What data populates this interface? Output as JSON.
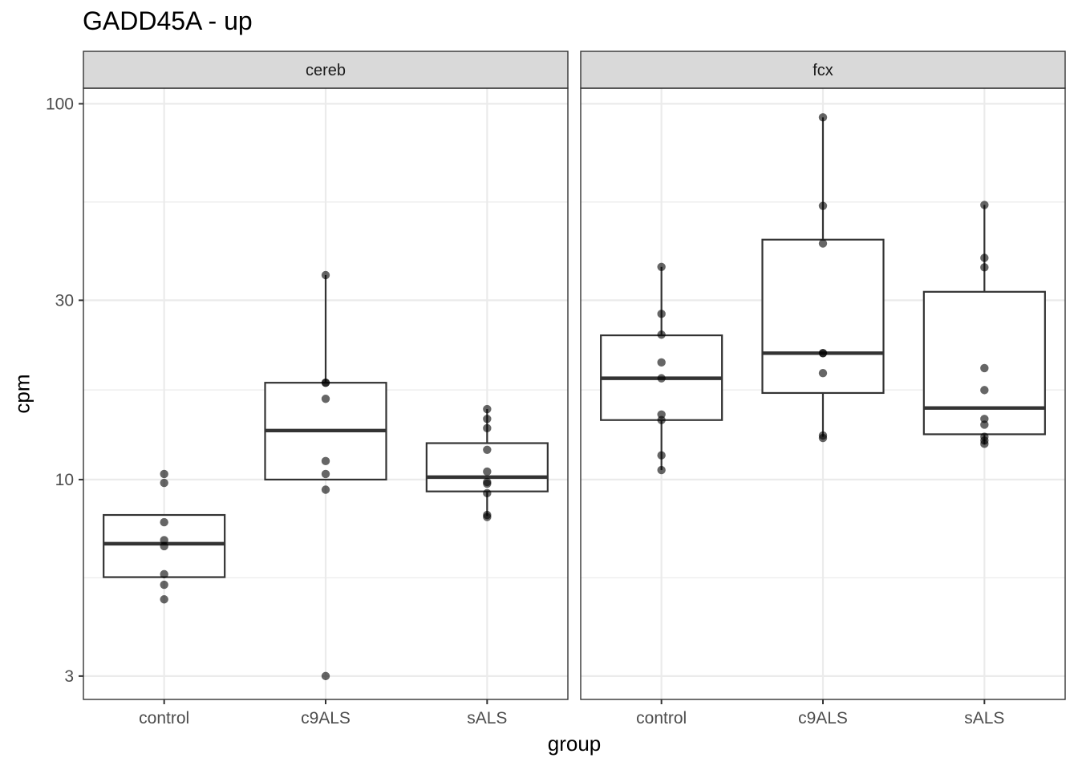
{
  "chart_data": {
    "type": "boxplot",
    "title": "GADD45A - up",
    "xlabel": "group",
    "ylabel": "cpm",
    "yscale": "log10",
    "ylim": [
      2.6,
      110
    ],
    "yticks": [
      3,
      10,
      30,
      100
    ],
    "ytick_labels": [
      "3",
      "10",
      "30",
      "100"
    ],
    "categories": [
      "control",
      "c9ALS",
      "sALS"
    ],
    "facets": [
      {
        "name": "cereb",
        "groups": [
          {
            "name": "control",
            "box": {
              "lower": 5.5,
              "q1": 5.5,
              "median": 6.75,
              "q3": 8.05,
              "upper": 8.05
            },
            "points": [
              10.35,
              9.8,
              7.7,
              6.9,
              6.65,
              5.6,
              5.25,
              4.8
            ]
          },
          {
            "name": "c9ALS",
            "box": {
              "lower": 10.0,
              "q1": 10.0,
              "median": 13.5,
              "q3": 18.1,
              "upper": 35.0
            },
            "points": [
              35.0,
              18.1,
              18.1,
              16.4,
              11.2,
              10.35,
              9.4,
              3.0
            ]
          },
          {
            "name": "sALS",
            "box": {
              "lower": 8.0,
              "q1": 9.3,
              "median": 10.15,
              "q3": 12.5,
              "upper": 15.4
            },
            "points": [
              15.4,
              14.5,
              13.7,
              12.0,
              10.5,
              9.85,
              9.75,
              9.2,
              8.05,
              7.95
            ]
          }
        ]
      },
      {
        "name": "fcx",
        "groups": [
          {
            "name": "control",
            "box": {
              "lower": 10.6,
              "q1": 14.4,
              "median": 18.6,
              "q3": 24.2,
              "upper": 36.8
            },
            "points": [
              36.8,
              27.6,
              24.3,
              20.5,
              18.6,
              14.9,
              14.4,
              11.6,
              10.6
            ]
          },
          {
            "name": "c9ALS",
            "box": {
              "lower": 13.0,
              "q1": 17.0,
              "median": 21.7,
              "q3": 43.5,
              "upper": 92.0
            },
            "points": [
              92.0,
              53.5,
              42.5,
              21.7,
              21.7,
              19.2,
              13.1,
              12.9
            ]
          },
          {
            "name": "sALS",
            "box": {
              "lower": 12.4,
              "q1": 13.2,
              "median": 15.5,
              "q3": 31.6,
              "upper": 53.8
            },
            "points": [
              53.8,
              38.9,
              36.7,
              19.8,
              17.3,
              14.5,
              14.0,
              13.0,
              12.7,
              12.45
            ]
          }
        ]
      }
    ]
  }
}
